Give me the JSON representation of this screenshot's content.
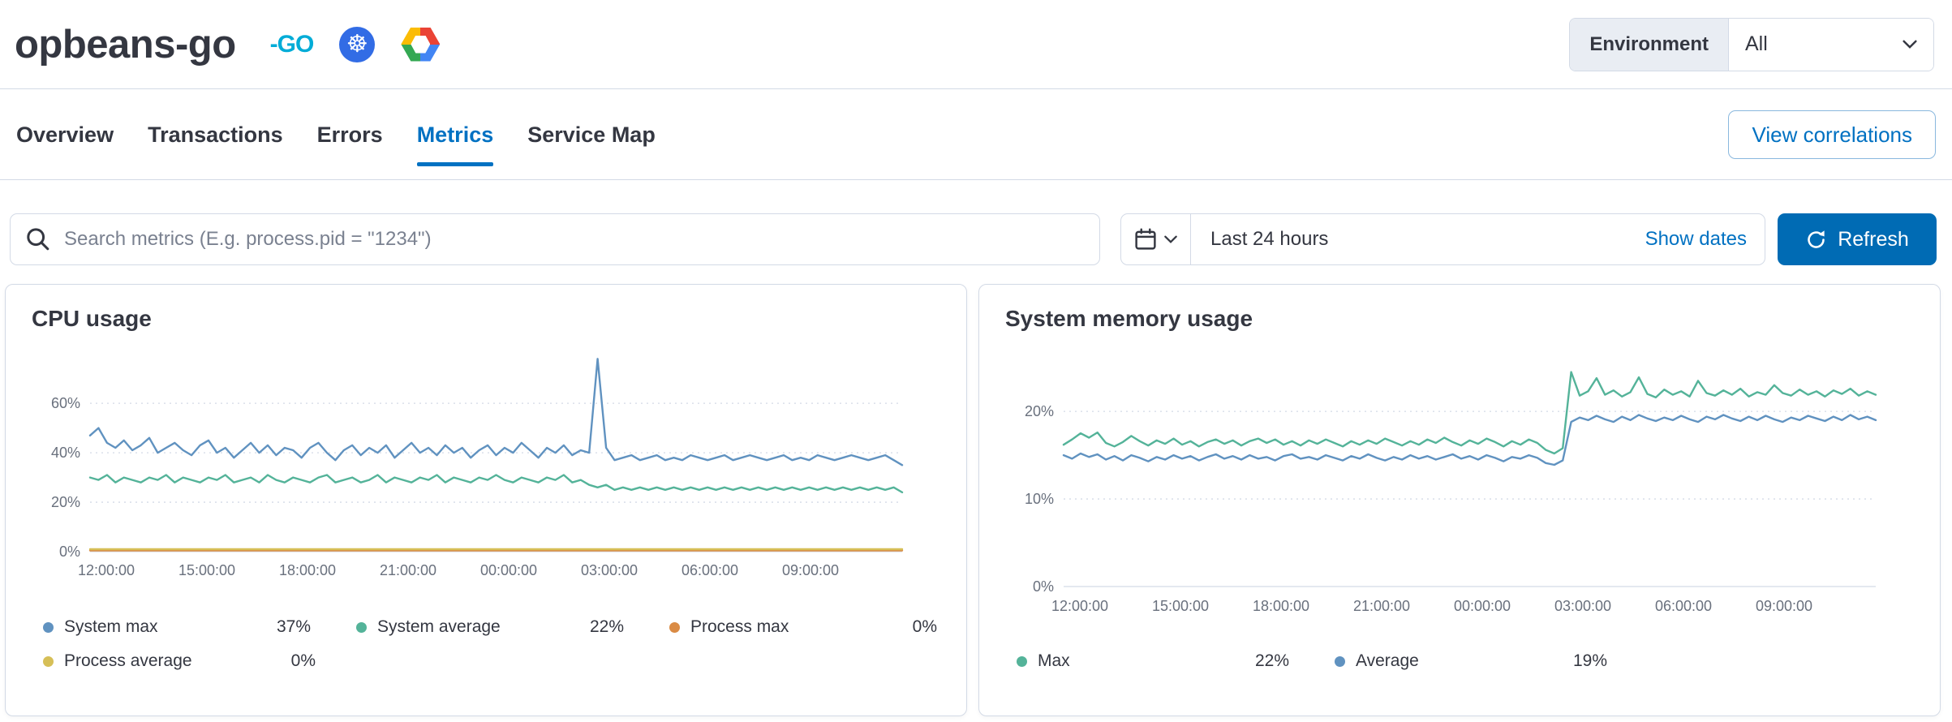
{
  "header": {
    "title": "opbeans-go",
    "environment_label": "Environment",
    "environment_value": "All",
    "icons": [
      "go-logo",
      "kubernetes-logo",
      "google-cloud-logo"
    ]
  },
  "tabs": {
    "items": [
      {
        "label": "Overview",
        "active": false
      },
      {
        "label": "Transactions",
        "active": false
      },
      {
        "label": "Errors",
        "active": false
      },
      {
        "label": "Metrics",
        "active": true
      },
      {
        "label": "Service Map",
        "active": false
      }
    ],
    "correlations_button": "View correlations"
  },
  "toolbar": {
    "search_placeholder": "Search metrics (E.g. process.pid = \"1234\")",
    "time_range": "Last 24 hours",
    "show_dates_label": "Show dates",
    "refresh_label": "Refresh",
    "icons": [
      "search-icon",
      "calendar-icon",
      "chevron-down-icon",
      "refresh-icon"
    ]
  },
  "colors": {
    "accent_blue": "#0071C2",
    "primary_button": "#006BB4",
    "border": "#D3DAE6",
    "text": "#343741",
    "muted_text": "#69707D"
  },
  "chart_data": [
    {
      "type": "line",
      "title": "CPU usage",
      "xlabel": "",
      "ylabel": "",
      "ylim": [
        0,
        81.7
      ],
      "grid": "horizontal-dotted",
      "legend_position": "bottom",
      "yticks": [
        {
          "value": 0,
          "label": "0%"
        },
        {
          "value": 20,
          "label": "20%"
        },
        {
          "value": 40,
          "label": "40%"
        },
        {
          "value": 60,
          "label": "60%"
        }
      ],
      "xticks": [
        "12:00:00",
        "15:00:00",
        "18:00:00",
        "21:00:00",
        "00:00:00",
        "03:00:00",
        "06:00:00",
        "09:00:00"
      ],
      "series": [
        {
          "name": "System max",
          "summary": "37%",
          "color": "#6092C0",
          "values": [
            47,
            50,
            44,
            42,
            45,
            41,
            43,
            46,
            40,
            42,
            44,
            41,
            39,
            43,
            45,
            40,
            42,
            38,
            41,
            44,
            40,
            43,
            39,
            42,
            41,
            38,
            42,
            44,
            40,
            37,
            41,
            43,
            39,
            42,
            40,
            43,
            38,
            41,
            44,
            40,
            42,
            39,
            43,
            40,
            42,
            38,
            41,
            43,
            39,
            42,
            40,
            44,
            41,
            38,
            42,
            40,
            43,
            39,
            41,
            40,
            78,
            42,
            37,
            38,
            39,
            37,
            38,
            39,
            37,
            38,
            37,
            39,
            38,
            37,
            38,
            39,
            37,
            38,
            39,
            38,
            37,
            38,
            39,
            37,
            38,
            37,
            39,
            38,
            37,
            38,
            39,
            38,
            37,
            38,
            39,
            37,
            35
          ]
        },
        {
          "name": "System average",
          "summary": "22%",
          "color": "#54B399",
          "values": [
            30,
            29,
            31,
            28,
            30,
            29,
            28,
            30,
            29,
            31,
            28,
            30,
            29,
            28,
            30,
            29,
            31,
            28,
            29,
            30,
            28,
            31,
            29,
            28,
            30,
            29,
            28,
            30,
            31,
            28,
            29,
            30,
            28,
            29,
            31,
            28,
            30,
            29,
            28,
            30,
            29,
            31,
            28,
            30,
            29,
            28,
            30,
            29,
            31,
            29,
            28,
            30,
            29,
            28,
            30,
            29,
            31,
            28,
            29,
            27,
            26,
            27,
            25,
            26,
            25,
            26,
            25,
            26,
            25,
            26,
            25,
            26,
            25,
            26,
            25,
            26,
            25,
            26,
            25,
            26,
            25,
            26,
            25,
            26,
            25,
            26,
            25,
            26,
            25,
            26,
            25,
            26,
            25,
            26,
            25,
            26,
            24
          ]
        },
        {
          "name": "Process max",
          "summary": "0%",
          "color": "#DA8B45",
          "values": 0.5
        },
        {
          "name": "Process average",
          "summary": "0%",
          "color": "#D6BF57",
          "values": 1.0
        }
      ]
    },
    {
      "type": "line",
      "title": "System memory usage",
      "xlabel": "",
      "ylabel": "",
      "ylim": [
        0,
        26.5
      ],
      "grid": "horizontal-dotted",
      "legend_position": "bottom",
      "yticks": [
        {
          "value": 0,
          "label": "0%"
        },
        {
          "value": 10,
          "label": "10%"
        },
        {
          "value": 20,
          "label": "20%"
        }
      ],
      "xticks": [
        "12:00:00",
        "15:00:00",
        "18:00:00",
        "21:00:00",
        "00:00:00",
        "03:00:00",
        "06:00:00",
        "09:00:00"
      ],
      "series": [
        {
          "name": "Max",
          "summary": "22%",
          "color": "#54B399",
          "values": [
            16.2,
            16.8,
            17.5,
            17.0,
            17.6,
            16.4,
            16.0,
            16.5,
            17.2,
            16.6,
            16.1,
            16.7,
            16.3,
            16.9,
            16.2,
            16.6,
            16.0,
            16.5,
            16.8,
            16.3,
            16.7,
            16.1,
            16.6,
            16.9,
            16.4,
            16.8,
            16.2,
            16.6,
            16.1,
            16.7,
            16.3,
            16.8,
            16.4,
            16.0,
            16.6,
            16.2,
            16.7,
            16.3,
            16.9,
            16.5,
            16.1,
            16.6,
            16.2,
            16.8,
            16.4,
            17.0,
            16.5,
            16.1,
            16.7,
            16.3,
            16.9,
            16.5,
            16.0,
            16.6,
            16.2,
            16.8,
            16.4,
            15.6,
            15.2,
            15.8,
            24.5,
            21.8,
            22.3,
            23.8,
            21.9,
            22.4,
            21.7,
            22.2,
            23.9,
            22.0,
            21.6,
            22.5,
            21.9,
            22.3,
            21.7,
            23.5,
            22.1,
            21.8,
            22.4,
            21.9,
            22.6,
            21.7,
            22.2,
            21.9,
            23.0,
            22.1,
            21.8,
            22.5,
            21.9,
            22.3,
            21.7,
            22.4,
            22.0,
            22.6,
            21.8,
            22.3,
            21.9
          ]
        },
        {
          "name": "Average",
          "summary": "19%",
          "color": "#6092C0",
          "values": [
            15.0,
            14.6,
            15.2,
            14.8,
            15.1,
            14.5,
            14.9,
            14.4,
            15.0,
            14.7,
            14.3,
            14.8,
            14.5,
            15.0,
            14.6,
            14.9,
            14.4,
            14.8,
            15.1,
            14.6,
            14.9,
            14.5,
            15.0,
            14.6,
            14.8,
            14.4,
            14.9,
            15.1,
            14.6,
            14.8,
            14.5,
            15.0,
            14.7,
            14.4,
            14.9,
            14.6,
            15.1,
            14.7,
            14.4,
            14.8,
            14.5,
            15.0,
            14.6,
            14.9,
            14.5,
            14.8,
            15.1,
            14.6,
            14.9,
            14.5,
            15.0,
            14.7,
            14.3,
            14.8,
            14.6,
            15.0,
            14.7,
            14.1,
            13.9,
            14.4,
            18.8,
            19.3,
            19.0,
            19.5,
            19.1,
            18.8,
            19.4,
            19.0,
            19.6,
            19.2,
            18.9,
            19.3,
            19.0,
            19.5,
            19.1,
            18.8,
            19.4,
            19.1,
            19.6,
            19.2,
            18.9,
            19.4,
            19.0,
            19.5,
            19.1,
            18.8,
            19.3,
            19.0,
            19.5,
            19.2,
            18.9,
            19.4,
            19.0,
            19.6,
            19.1,
            19.4,
            19.0
          ]
        }
      ]
    }
  ]
}
